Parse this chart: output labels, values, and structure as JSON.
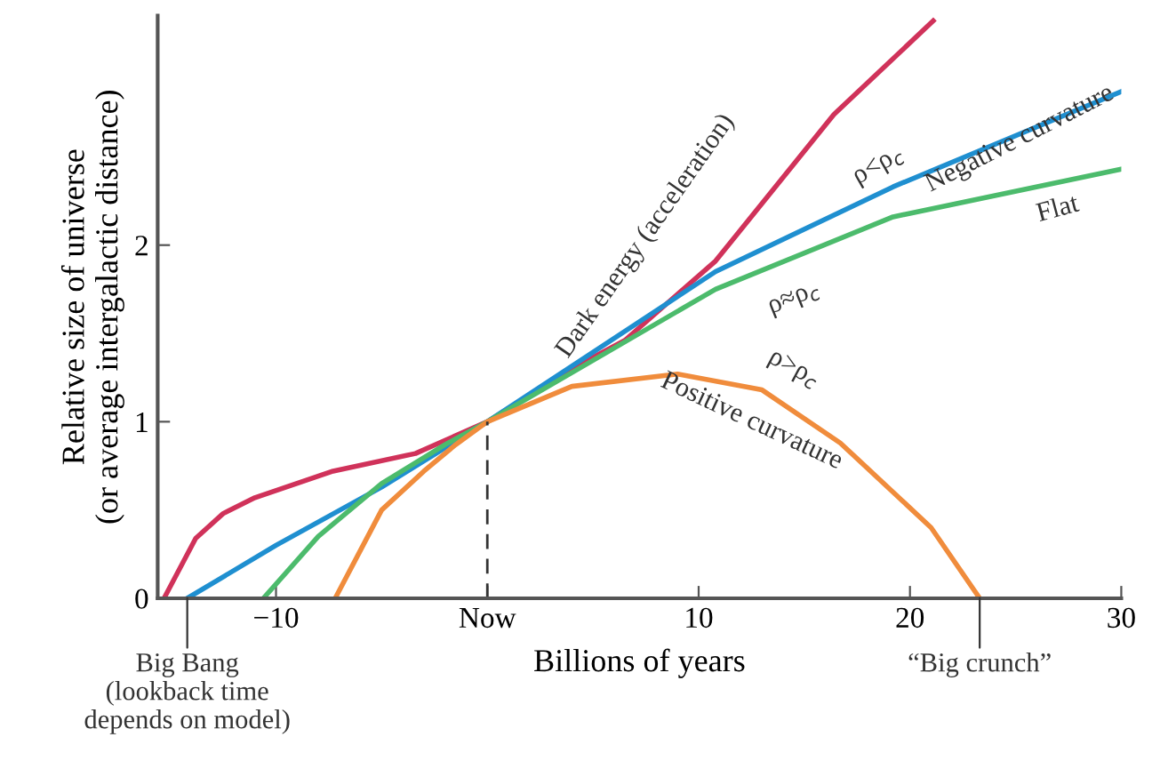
{
  "chart_data": {
    "type": "line",
    "xlabel": "Billions of years",
    "ylabel": "Relative size of universe\n(or average intergalactic distance)",
    "xlim": [
      -15.6,
      30
    ],
    "ylim": [
      0,
      3.3
    ],
    "xticks": [
      -10,
      {
        "value": 0,
        "label": "Now"
      },
      10,
      20,
      30
    ],
    "yticks": [
      0,
      1,
      2
    ],
    "grid": false,
    "legend": false,
    "marker": "none",
    "line_style": "solid",
    "series": [
      {
        "color": "#d0325a",
        "x": [
          -15.3,
          -13.8,
          -12.5,
          -11,
          -7.3,
          -3.4,
          0,
          4,
          6.5,
          10.8,
          16.4,
          21.1
        ],
        "values": [
          0,
          0.34,
          0.48,
          0.57,
          0.72,
          0.82,
          1,
          1.3,
          1.46,
          1.91,
          2.74,
          3.27
        ]
      },
      {
        "color": "#1f8fd0",
        "x": [
          -14.2,
          -10,
          -5,
          0,
          10.8,
          19.2,
          30
        ],
        "values": [
          0,
          0.3,
          0.63,
          1,
          1.85,
          2.33,
          2.87
        ]
      },
      {
        "color": "#4cbb6c",
        "x": [
          -10.6,
          -8,
          -5,
          -2,
          0,
          10.8,
          19.2,
          30
        ],
        "values": [
          0,
          0.35,
          0.65,
          0.87,
          1,
          1.75,
          2.16,
          2.43
        ]
      },
      {
        "color": "#f08c3c",
        "x": [
          -7.2,
          -5,
          -3,
          -1.5,
          0,
          4,
          9,
          13,
          16.7,
          21,
          23.3
        ],
        "values": [
          0,
          0.5,
          0.72,
          0.87,
          1,
          1.2,
          1.27,
          1.18,
          0.88,
          0.4,
          0
        ]
      }
    ],
    "ref_lines": [
      {
        "axis": "x",
        "value": 0,
        "line_style": "dashed",
        "color": "#333333"
      }
    ],
    "annotations": [
      "Dark energy (acceleration)",
      "ρ<ρ$_{c}$",
      "Negative curvature",
      "Flat",
      "ρ≈ρ$_{c}$",
      "ρ>ρ$_{c}$",
      "Positive curvature",
      {
        "text": "Big Bang\n(lookback time\ndepends on model)",
        "x": -14.2,
        "y": 0
      },
      {
        "text": "“Big crunch”",
        "x": 23.3,
        "y": 0
      }
    ]
  }
}
